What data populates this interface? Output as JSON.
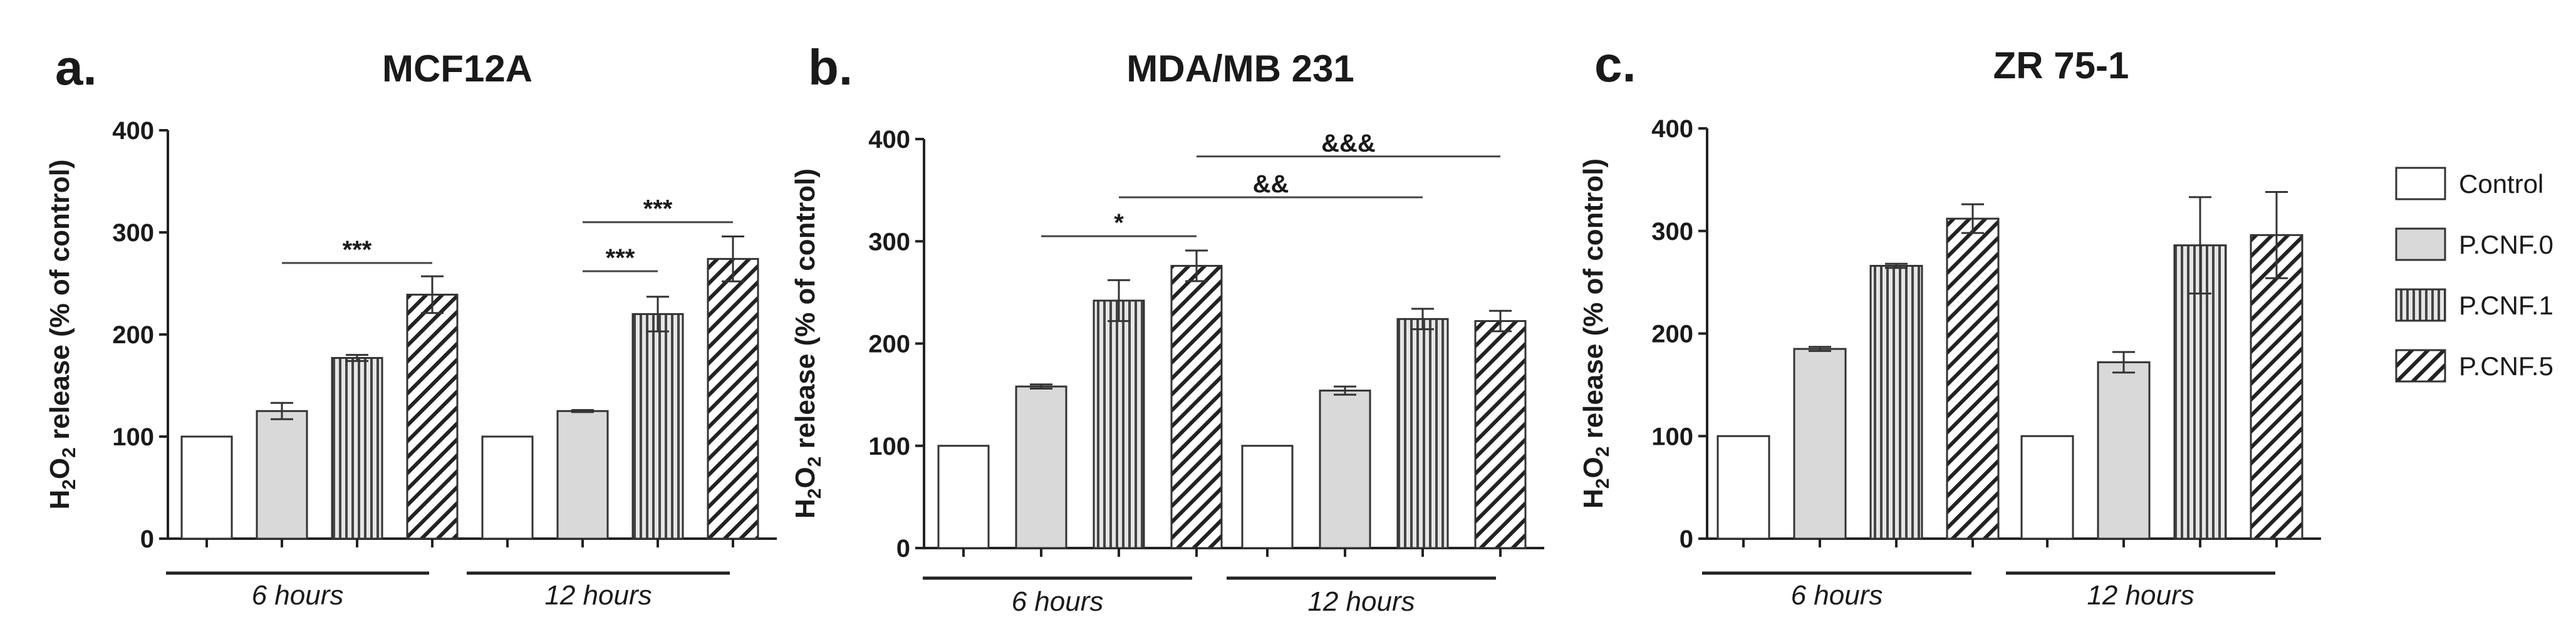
{
  "chart_data": [
    {
      "type": "bar",
      "panel": "a.",
      "title": "MCF12A",
      "ylabel": "H2O2 release (% of control)",
      "ylim": [
        0,
        400
      ],
      "yticks": [
        0,
        100,
        200,
        300,
        400
      ],
      "groups": [
        "6 hours",
        "12 hours"
      ],
      "series": [
        {
          "name": "Control",
          "values": [
            100,
            100
          ],
          "errors": [
            0,
            0
          ]
        },
        {
          "name": "P.CNF.0",
          "values": [
            125,
            125
          ],
          "errors": [
            8,
            1
          ]
        },
        {
          "name": "P.CNF.1",
          "values": [
            177,
            220
          ],
          "errors": [
            3,
            17
          ]
        },
        {
          "name": "P.CNF.5",
          "values": [
            239,
            274
          ],
          "errors": [
            18,
            22
          ]
        }
      ],
      "significance": [
        {
          "label": "***",
          "group": 0,
          "from": 1,
          "to": 3,
          "y": 270
        },
        {
          "label": "***",
          "group": 1,
          "from": 1,
          "to": 2,
          "y": 262
        },
        {
          "label": "***",
          "group": 1,
          "from": 1,
          "to": 3,
          "y": 310
        }
      ]
    },
    {
      "type": "bar",
      "panel": "b.",
      "title": "MDA/MB 231",
      "ylabel": "H2O2 release (% of control)",
      "ylim": [
        0,
        400
      ],
      "yticks": [
        0,
        100,
        200,
        300,
        400
      ],
      "groups": [
        "6 hours",
        "12 hours"
      ],
      "series": [
        {
          "name": "Control",
          "values": [
            100,
            100
          ],
          "errors": [
            0,
            0
          ]
        },
        {
          "name": "P.CNF.0",
          "values": [
            158,
            154
          ],
          "errors": [
            2,
            4
          ]
        },
        {
          "name": "P.CNF.1",
          "values": [
            242,
            224
          ],
          "errors": [
            20,
            10
          ]
        },
        {
          "name": "P.CNF.5",
          "values": [
            276,
            222
          ],
          "errors": [
            15,
            10
          ]
        }
      ],
      "significance": [
        {
          "label": "*",
          "group": 0,
          "from": 1,
          "to": 3,
          "y": 305
        },
        {
          "label": "&&",
          "gfrom": 0,
          "from": 2,
          "gto": 1,
          "to": 2,
          "y": 343
        },
        {
          "label": "&&&",
          "gfrom": 0,
          "from": 3,
          "gto": 1,
          "to": 3,
          "y": 383
        }
      ]
    },
    {
      "type": "bar",
      "panel": "c.",
      "title": "ZR 75-1",
      "ylabel": "H2O2 release (% of control)",
      "ylim": [
        0,
        400
      ],
      "yticks": [
        0,
        100,
        200,
        300,
        400
      ],
      "groups": [
        "6 hours",
        "12 hours"
      ],
      "series": [
        {
          "name": "Control",
          "values": [
            100,
            100
          ],
          "errors": [
            0,
            0
          ]
        },
        {
          "name": "P.CNF.0",
          "values": [
            185,
            172
          ],
          "errors": [
            2,
            10
          ]
        },
        {
          "name": "P.CNF.1",
          "values": [
            266,
            286
          ],
          "errors": [
            2,
            47
          ]
        },
        {
          "name": "P.CNF.5",
          "values": [
            312,
            296
          ],
          "errors": [
            14,
            42
          ]
        }
      ],
      "significance": []
    }
  ],
  "legend": {
    "position": "right",
    "items": [
      {
        "label": "Control",
        "pattern": "white"
      },
      {
        "label": "P.CNF.0",
        "pattern": "grey"
      },
      {
        "label": "P.CNF.1",
        "pattern": "vertical"
      },
      {
        "label": "P.CNF.5",
        "pattern": "diagonal"
      }
    ]
  }
}
